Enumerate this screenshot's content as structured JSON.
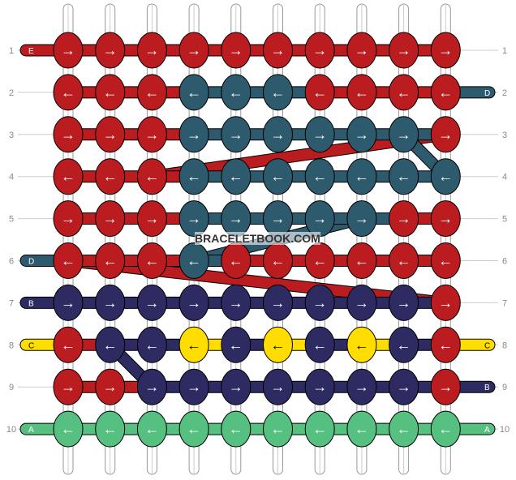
{
  "watermark": "BRACELETBOOK.COM",
  "colors": {
    "R": "#bb1c1f",
    "T": "#2e5a6e",
    "N": "#2e2b62",
    "Y": "#ffdd00",
    "G": "#55c080"
  },
  "rows": [
    {
      "label": "1",
      "dir": "right",
      "knots": "RRRRRRRRRR"
    },
    {
      "label": "2",
      "dir": "left",
      "knots": "RRRTTTRRRR"
    },
    {
      "label": "3",
      "dir": "right",
      "knots": "RRRTTTTTTR"
    },
    {
      "label": "4",
      "dir": "left",
      "knots": "RRRTTTTTTT"
    },
    {
      "label": "5",
      "dir": "right",
      "knots": "RRRTTTTTRR"
    },
    {
      "label": "6",
      "dir": "left",
      "knots": "RRRTRRRRRR"
    },
    {
      "label": "7",
      "dir": "right",
      "knots": "NNNNNNNNNR"
    },
    {
      "label": "8",
      "dir": "left",
      "knots": "RNNYNYNYNR"
    },
    {
      "label": "9",
      "dir": "right",
      "knots": "RRNNNNNNNR"
    },
    {
      "label": "10",
      "dir": "left",
      "knots": "GGGGGGGGGG"
    }
  ],
  "left_strings": [
    {
      "row": 1,
      "letter": "E",
      "color": "R"
    },
    {
      "row": 6,
      "letter": "D",
      "color": "T"
    },
    {
      "row": 7,
      "letter": "B",
      "color": "N"
    },
    {
      "row": 8,
      "letter": "C",
      "color": "Y"
    },
    {
      "row": 10,
      "letter": "A",
      "color": "G"
    }
  ],
  "right_strings": [
    {
      "row": 2,
      "letter": "D",
      "color": "T"
    },
    {
      "row": 8,
      "letter": "C",
      "color": "Y"
    },
    {
      "row": 9,
      "letter": "B",
      "color": "N"
    },
    {
      "row": 10,
      "letter": "A",
      "color": "G"
    }
  ]
}
